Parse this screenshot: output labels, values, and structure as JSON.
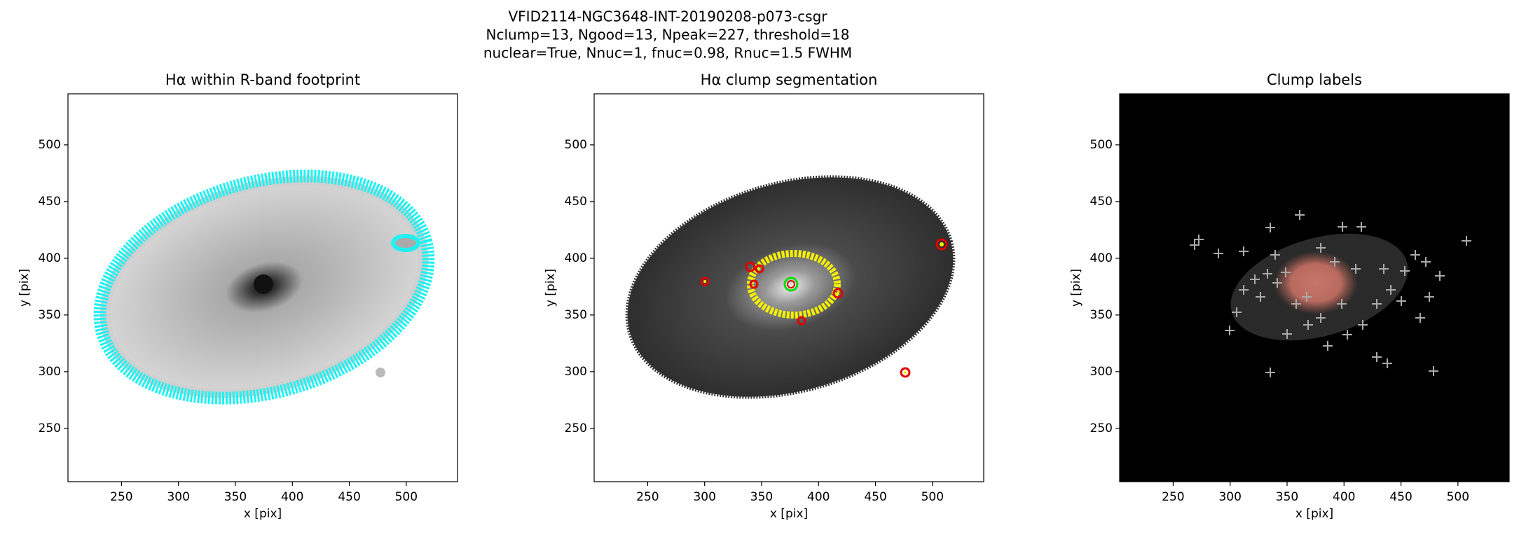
{
  "suptitle": [
    "VFID2114-NGC3648-INT-20190208-p073-csgr",
    "Nclump=13, Ngood=13, Npeak=227, threshold=18",
    "nuclear=True, Nnuc=1, fnuc=0.98, Rnuc=1.5 FWHM"
  ],
  "chart_data": [
    {
      "type": "image",
      "title": "Hα within R-band footprint",
      "xlabel": "x [pix]",
      "ylabel": "y [pix]",
      "background": "#ffffff",
      "xlim": [
        203,
        545
      ],
      "ylim": [
        203,
        545
      ],
      "xticks": [
        250,
        300,
        350,
        400,
        450,
        500
      ],
      "yticks": [
        250,
        300,
        350,
        400,
        450,
        500
      ]
    },
    {
      "type": "image",
      "title": "Hα clump segmentation",
      "xlabel": "x [pix]",
      "ylabel": "y [pix]",
      "background": "#ffffff",
      "xlim": [
        203,
        545
      ],
      "ylim": [
        203,
        545
      ],
      "xticks": [
        250,
        300,
        350,
        400,
        450,
        500
      ],
      "yticks": [
        250,
        300,
        350,
        400,
        450,
        500
      ]
    },
    {
      "type": "image",
      "title": "Clump labels",
      "xlabel": "x [pix]",
      "ylabel": "y [pix]",
      "background": "#000000",
      "xlim": [
        203,
        545
      ],
      "ylim": [
        203,
        545
      ],
      "xticks": [
        250,
        300,
        350,
        400,
        450,
        500
      ],
      "yticks": [
        250,
        300,
        350,
        400,
        450,
        500
      ]
    }
  ]
}
